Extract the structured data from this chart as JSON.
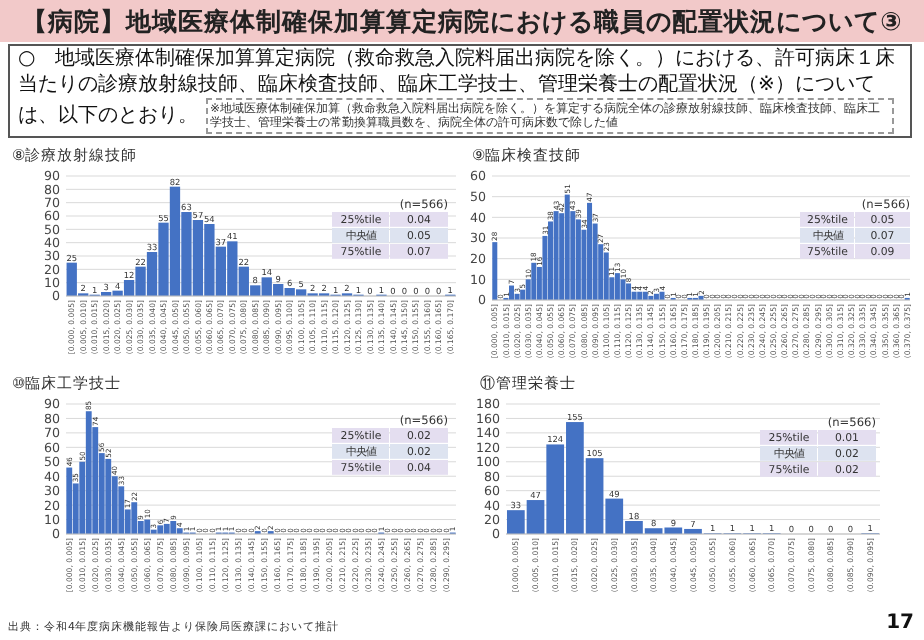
{
  "chart_data": [
    {
      "type": "other",
      "title": "【病院】地域医療体制確保加算算定病院における職員の配置状況について③",
      "annotations": [
        "○　地域医療体制確保加算算定病院（救命救急入院料届出病院を除く。）における、許可病床１床当たりの診療放射線技師、臨床検査技師、臨床工学技士、管理栄養士の配置状況（※）については、以下のとおり。",
        "※地域医療体制確保加算（救命救急入院料届出病院を除く。）を算定する病院全体の診療放射線技師、臨床検査技師、臨床工学技士、管理栄養士の常勤換算職員数を、病院全体の許可病床数で除した値",
        "出典：令和4年度病床機能報告より保険局医療課において推計",
        "17"
      ]
    },
    {
      "type": "bar",
      "title": "⑧診療放射線技師",
      "color": "#4472c4",
      "ylim": [
        0,
        90
      ],
      "yticks": [
        0,
        10,
        20,
        30,
        40,
        50,
        60,
        70,
        80,
        90
      ],
      "grid": "y",
      "data_labels": true,
      "annotations": [
        "(n=566)",
        "25%tile",
        "0.04",
        "中央値",
        "0.05",
        "75%tile",
        "0.07"
      ],
      "categories": [
        "[0.000, 0.005]",
        "(0.005, 0.010]",
        "(0.010, 0.015]",
        "(0.015, 0.020]",
        "(0.020, 0.025]",
        "(0.025, 0.030]",
        "(0.030, 0.035]",
        "(0.035, 0.040]",
        "(0.040, 0.045]",
        "(0.045, 0.050]",
        "(0.050, 0.055]",
        "(0.055, 0.060]",
        "(0.060, 0.065]",
        "(0.065, 0.070]",
        "(0.070, 0.075]",
        "(0.075, 0.080]",
        "(0.080, 0.085]",
        "(0.085, 0.090]",
        "(0.090, 0.095]",
        "(0.095, 0.100]",
        "(0.100, 0.105]",
        "(0.105, 0.110]",
        "(0.110, 0.115]",
        "(0.115, 0.120]",
        "(0.120, 0.125]",
        "(0.125, 0.130]",
        "(0.130, 0.135]",
        "(0.135, 0.140]",
        "(0.140, 0.145]",
        "(0.145, 0.150]",
        "(0.150, 0.155]",
        "(0.155, 0.160]",
        "(0.160, 0.165]",
        "(0.165, 0.170]"
      ],
      "values": [
        25,
        2,
        1,
        3,
        4,
        12,
        22,
        33,
        55,
        82,
        63,
        57,
        54,
        37,
        41,
        22,
        8,
        14,
        9,
        6,
        5,
        2,
        2,
        1,
        2,
        1,
        0,
        1,
        0,
        0,
        0,
        0,
        0,
        1
      ]
    },
    {
      "type": "bar",
      "title": "⑨臨床検査技師",
      "color": "#4472c4",
      "ylim": [
        0,
        60
      ],
      "yticks": [
        0,
        10,
        20,
        30,
        40,
        50,
        60
      ],
      "grid": "y",
      "data_labels": true,
      "annotations": [
        "(n=566)",
        "25%tile",
        "0.05",
        "中央値",
        "0.07",
        "75%tile",
        "0.09"
      ],
      "categories": [
        "[0.000, 0.005]",
        null,
        "(0.010, 0.015]",
        null,
        "(0.020, 0.025]",
        null,
        "(0.030, 0.035]",
        null,
        "(0.040, 0.045]",
        null,
        "(0.050, 0.055]",
        null,
        "(0.060, 0.065]",
        null,
        "(0.070, 0.075]",
        null,
        "(0.080, 0.085]",
        null,
        "(0.090, 0.095]",
        null,
        "(0.100, 0.105]",
        null,
        "(0.110, 0.115]",
        null,
        "(0.120, 0.125]",
        null,
        "(0.130, 0.135]",
        null,
        "(0.140, 0.145]",
        null,
        "(0.150, 0.155]",
        null,
        "(0.160, 0.165]",
        null,
        "(0.170, 0.175]",
        null,
        "(0.180, 0.185]",
        null,
        "(0.190, 0.195]",
        null,
        "(0.200, 0.205]",
        null,
        "(0.210, 0.215]",
        null,
        "(0.220, 0.225]",
        null,
        "(0.230, 0.235]",
        null,
        "(0.240, 0.245]",
        null,
        "(0.250, 0.255]",
        null,
        "(0.260, 0.265]",
        null,
        "(0.270, 0.275]",
        null,
        "(0.280, 0.285]",
        null,
        "(0.290, 0.295]",
        null,
        "(0.300, 0.305]",
        null,
        "(0.310, 0.315]",
        null,
        "(0.320, 0.325]",
        null,
        "(0.330, 0.335]",
        null,
        "(0.340, 0.345]",
        null,
        "(0.350, 0.355]",
        null,
        "(0.360, 0.365]",
        null,
        "(0.370, 0.375]"
      ],
      "values": [
        28,
        0,
        1,
        7,
        3,
        5,
        10,
        18,
        16,
        31,
        38,
        43,
        42,
        51,
        43,
        39,
        34,
        47,
        37,
        27,
        23,
        11,
        13,
        10,
        8,
        4,
        4,
        4,
        2,
        3,
        4,
        0,
        1,
        0,
        0,
        1,
        1,
        2,
        0,
        0,
        0,
        0,
        0,
        0,
        0,
        0,
        0,
        0,
        0,
        0,
        0,
        0,
        0,
        0,
        0,
        0,
        0,
        0,
        0,
        0,
        0,
        0,
        0,
        0,
        0,
        0,
        0,
        0,
        0,
        0,
        0,
        0,
        0,
        0,
        1
      ]
    },
    {
      "type": "bar",
      "title": "⑩臨床工学技士",
      "color": "#4472c4",
      "ylim": [
        0,
        90
      ],
      "yticks": [
        0,
        10,
        20,
        30,
        40,
        50,
        60,
        70,
        80,
        90
      ],
      "grid": "y",
      "data_labels": true,
      "annotations": [
        "(n=566)",
        "25%tile",
        "0.02",
        "中央値",
        "0.02",
        "75%tile",
        "0.04"
      ],
      "categories": [
        "[0.000, 0.005]",
        null,
        "(0.010, 0.015]",
        null,
        "(0.020, 0.025]",
        null,
        "(0.030, 0.035]",
        null,
        "(0.040, 0.045]",
        null,
        "(0.050, 0.055]",
        null,
        "(0.060, 0.065]",
        null,
        "(0.070, 0.075]",
        null,
        "(0.080, 0.085]",
        null,
        "(0.090, 0.095]",
        null,
        "(0.100, 0.105]",
        null,
        "(0.110, 0.115]",
        null,
        "(0.120, 0.125]",
        null,
        "(0.130, 0.135]",
        null,
        "(0.140, 0.145]",
        null,
        "(0.150, 0.155]",
        null,
        "(0.160, 0.165]",
        null,
        "(0.170, 0.175]",
        null,
        "(0.180, 0.185]",
        null,
        "(0.190, 0.195]",
        null,
        "(0.200, 0.205]",
        null,
        "(0.210, 0.215]",
        null,
        "(0.220, 0.225]",
        null,
        "(0.230, 0.235]",
        null,
        "(0.240, 0.245]",
        null,
        "(0.250, 0.255]",
        null,
        "(0.260, 0.265]",
        null,
        "(0.270, 0.275]",
        null,
        "(0.280, 0.285]",
        null,
        "(0.290, 0.295]",
        null
      ],
      "values": [
        46,
        35,
        50,
        85,
        74,
        56,
        52,
        40,
        33,
        17,
        22,
        9,
        10,
        3,
        6,
        7,
        9,
        4,
        1,
        1,
        0,
        0,
        0,
        1,
        1,
        1,
        0,
        0,
        0,
        2,
        0,
        2,
        0,
        0,
        0,
        0,
        0,
        0,
        0,
        0,
        0,
        0,
        0,
        0,
        0,
        0,
        0,
        0,
        1,
        0,
        0,
        0,
        0,
        0,
        0,
        0,
        0,
        0,
        0,
        1
      ]
    },
    {
      "type": "bar",
      "title": "⑪管理栄養士",
      "color": "#4472c4",
      "ylim": [
        0,
        180
      ],
      "yticks": [
        0,
        20,
        40,
        60,
        80,
        100,
        120,
        140,
        160,
        180
      ],
      "grid": "y",
      "data_labels": true,
      "annotations": [
        "(n=566)",
        "25%tile",
        "0.01",
        "中央値",
        "0.02",
        "75%tile",
        "0.02"
      ],
      "categories": [
        "[0.000, 0.005]",
        "(0.005, 0.010]",
        "(0.010, 0.015]",
        "(0.015, 0.020]",
        "(0.020, 0.025]",
        "(0.025, 0.030]",
        "(0.030, 0.035]",
        "(0.035, 0.040]",
        "(0.040, 0.045]",
        "(0.045, 0.050]",
        "(0.050, 0.055]",
        "(0.055, 0.060]",
        "(0.060, 0.065]",
        "(0.065, 0.070]",
        "(0.070, 0.075]",
        "(0.075, 0.080]",
        "(0.080, 0.085]",
        "(0.085, 0.090]",
        "(0.090, 0.095]"
      ],
      "values": [
        33,
        47,
        124,
        155,
        105,
        49,
        18,
        8,
        9,
        7,
        1,
        1,
        1,
        1,
        0,
        0,
        0,
        0,
        1
      ]
    }
  ]
}
